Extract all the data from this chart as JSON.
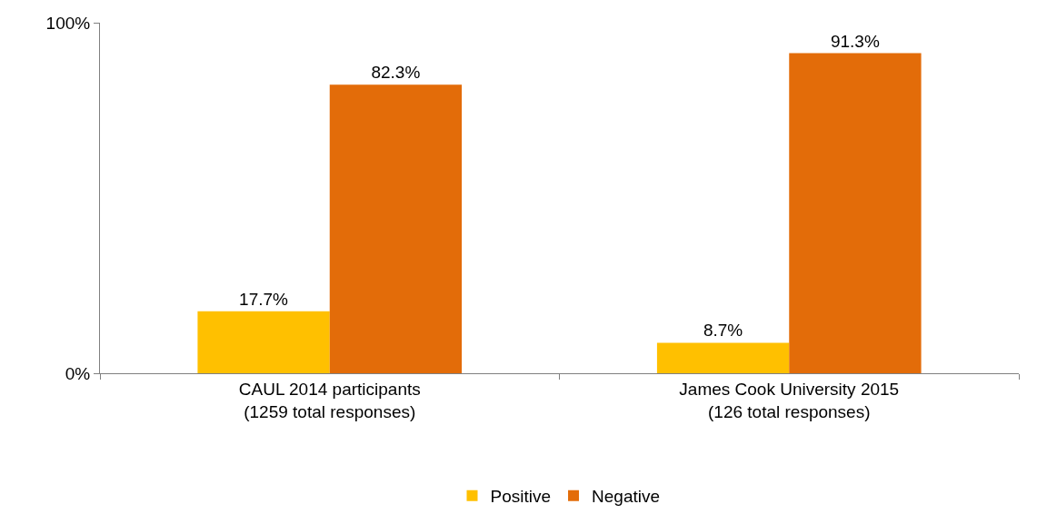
{
  "chart_data": {
    "type": "bar",
    "categories": [
      "CAUL 2014 participants\n(1259 total responses)",
      "James Cook University 2015\n(126 total responses)"
    ],
    "series": [
      {
        "name": "Positive",
        "color": "#ffc000",
        "values": [
          17.7,
          8.7
        ],
        "value_labels": [
          "17.7%",
          "8.7%"
        ]
      },
      {
        "name": "Negative",
        "color": "#e36c09",
        "values": [
          82.3,
          91.3
        ],
        "value_labels": [
          "82.3%",
          "91.3%"
        ]
      }
    ],
    "ylim": [
      0,
      100
    ],
    "yticks": [
      {
        "value": 0,
        "label": "0%"
      },
      {
        "value": 100,
        "label": "100%"
      }
    ],
    "legend": "bottom"
  }
}
